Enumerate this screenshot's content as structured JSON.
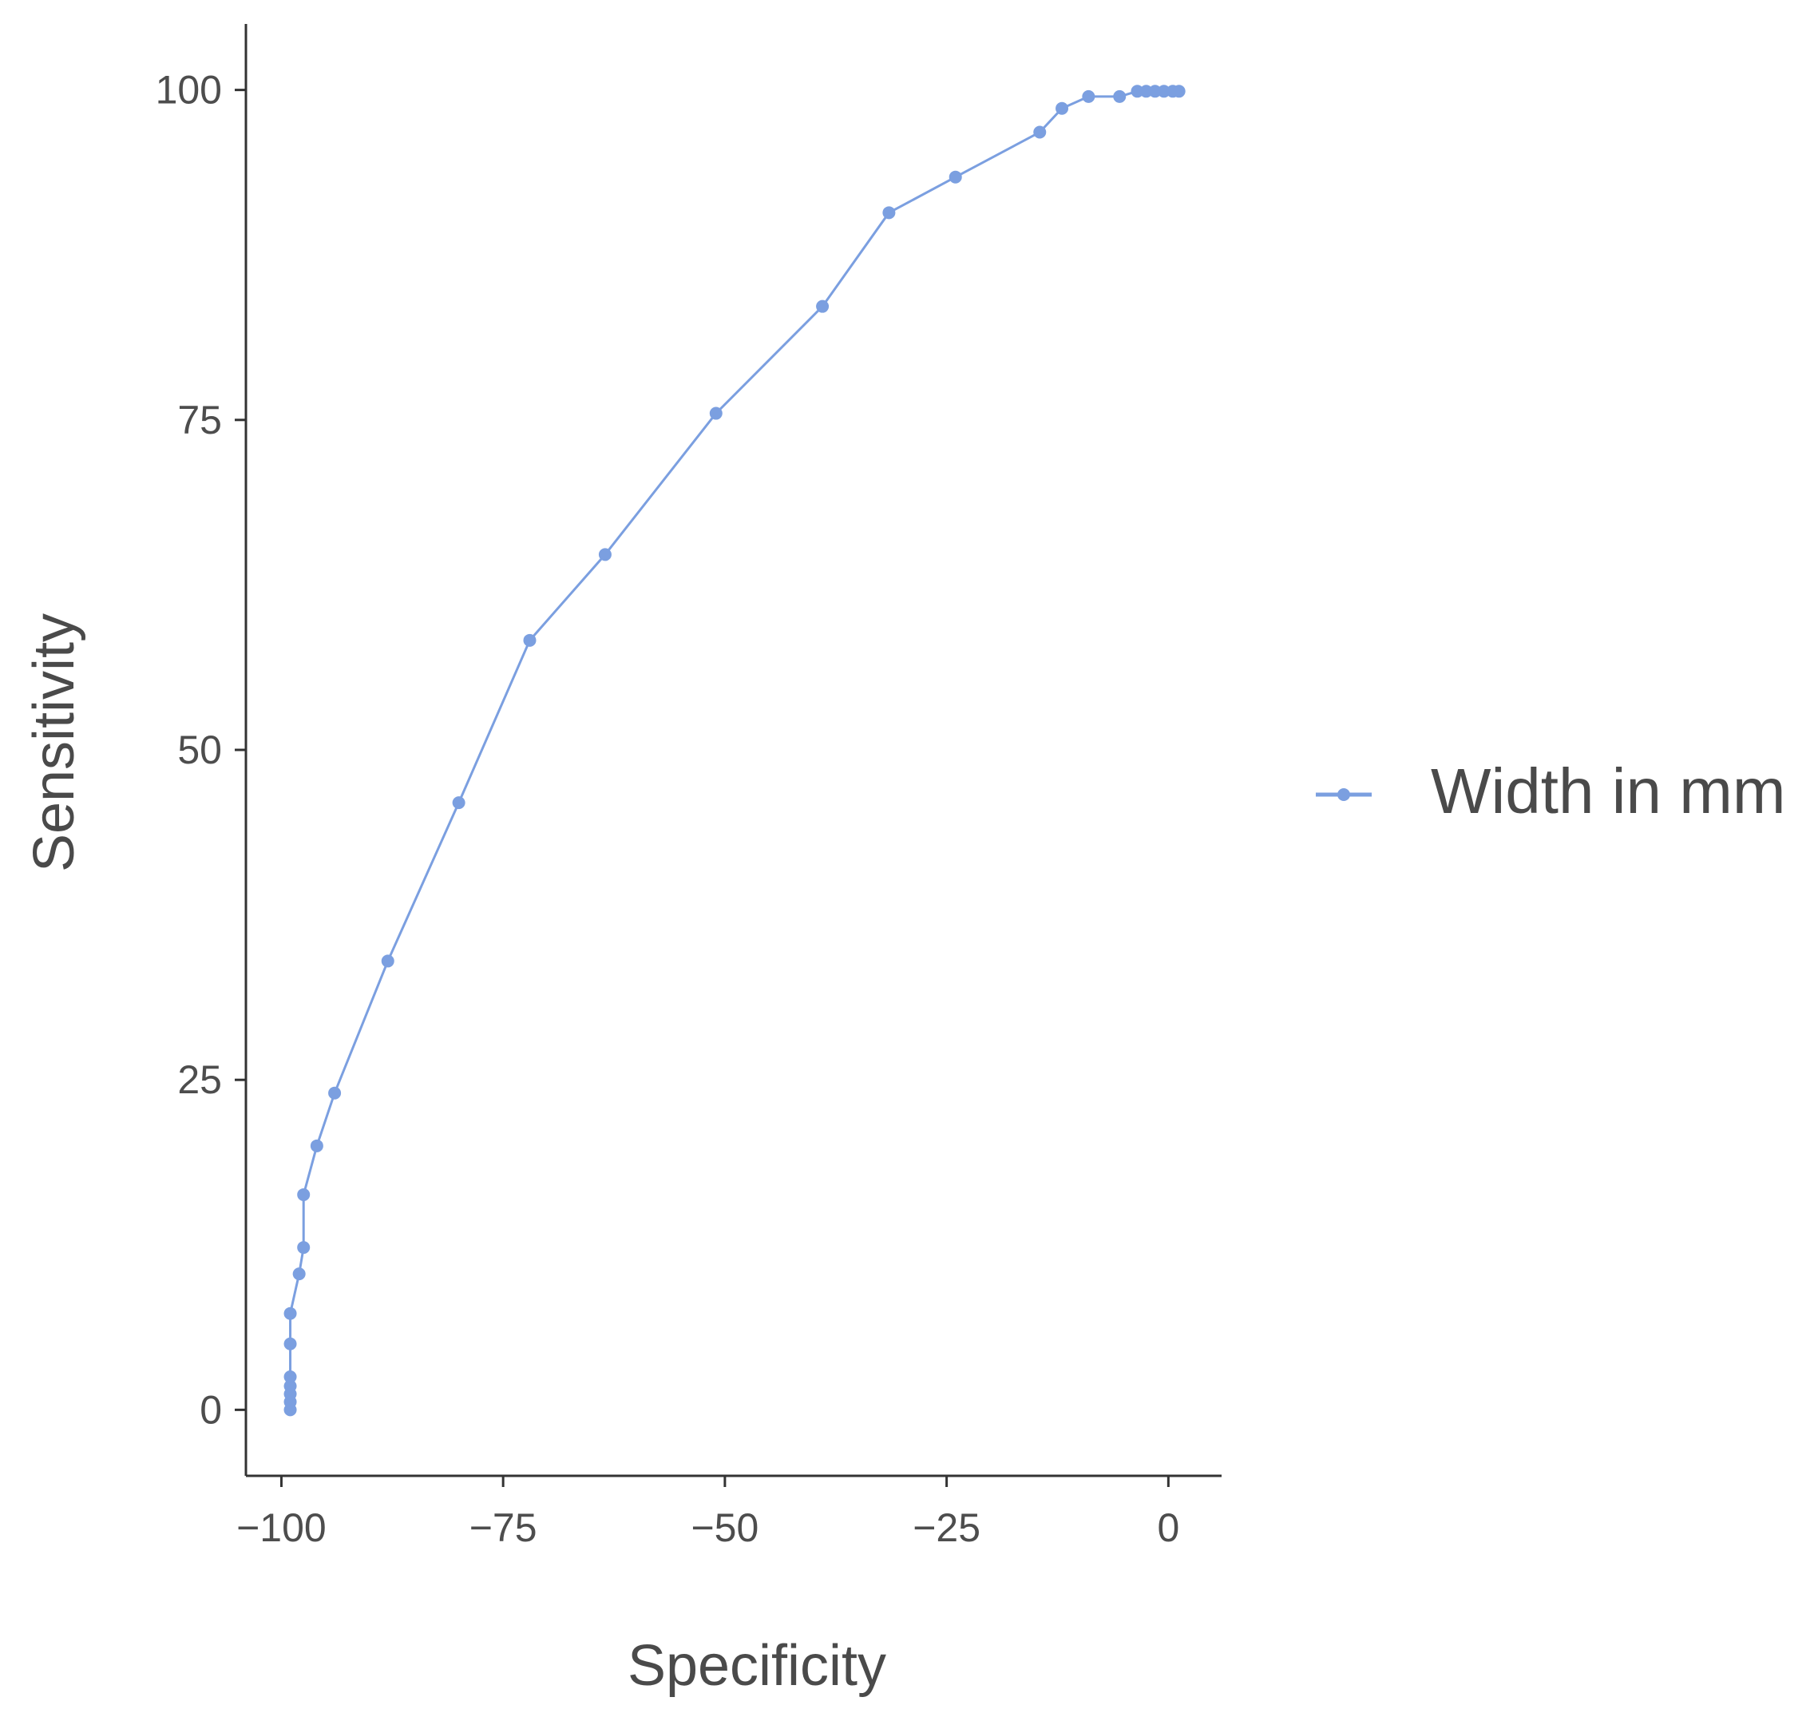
{
  "chart_data": {
    "type": "line",
    "title": "",
    "xlabel": "Specificity",
    "ylabel": "Sensitivity",
    "xlim": [
      -104,
      6
    ],
    "ylim": [
      -5,
      105
    ],
    "x_ticks": [
      -100,
      -75,
      -50,
      -25,
      0
    ],
    "y_ticks": [
      0,
      25,
      50,
      75,
      100
    ],
    "x_tick_labels": [
      "−100",
      "−75",
      "−50",
      "−25",
      "0"
    ],
    "y_tick_labels": [
      "0",
      "25",
      "50",
      "75",
      "100"
    ],
    "grid": false,
    "legend": {
      "position": "right",
      "entries": [
        "Width in mm"
      ]
    },
    "colors": {
      "series": "#7b9fe0",
      "axis": "#333333"
    },
    "series": [
      {
        "name": "Width in mm",
        "points": [
          [
            -99,
            0
          ],
          [
            -99,
            0.6
          ],
          [
            -99,
            1.2
          ],
          [
            -99,
            1.8
          ],
          [
            -99,
            2.5
          ],
          [
            -99,
            5
          ],
          [
            -99,
            7.3
          ],
          [
            -98,
            10.3
          ],
          [
            -97.5,
            12.3
          ],
          [
            -97.5,
            16.3
          ],
          [
            -96,
            20
          ],
          [
            -94,
            24
          ],
          [
            -88,
            34
          ],
          [
            -80,
            46
          ],
          [
            -72,
            58.3
          ],
          [
            -63.5,
            64.8
          ],
          [
            -51,
            75.5
          ],
          [
            -39,
            83.6
          ],
          [
            -31.5,
            90.7
          ],
          [
            -24,
            93.4
          ],
          [
            -14.5,
            96.8
          ],
          [
            -12,
            98.6
          ],
          [
            -9,
            99.5
          ],
          [
            -5.5,
            99.5
          ],
          [
            -3.5,
            99.9
          ],
          [
            -2.5,
            99.9
          ],
          [
            -1.5,
            99.9
          ],
          [
            -0.5,
            99.9
          ],
          [
            0.5,
            99.9
          ],
          [
            1.2,
            99.9
          ]
        ]
      }
    ]
  }
}
